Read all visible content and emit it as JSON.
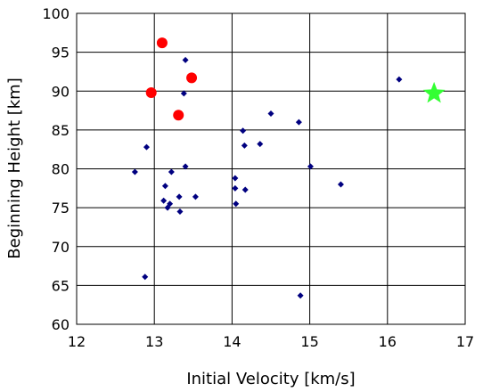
{
  "chart_data": {
    "type": "scatter",
    "xlabel": "Initial Velocity [km/s]",
    "ylabel": "Beginning Height [km]",
    "xlim": [
      12,
      17
    ],
    "ylim": [
      60,
      100
    ],
    "x_ticks": [
      12,
      13,
      14,
      15,
      16,
      17
    ],
    "y_ticks": [
      60,
      65,
      70,
      75,
      80,
      85,
      90,
      95,
      100
    ],
    "grid": true,
    "legend": "none",
    "series": [
      {
        "marker": "diamond",
        "color": "#000080",
        "points": [
          [
            12.75,
            79.6
          ],
          [
            12.88,
            66.1
          ],
          [
            12.9,
            82.8
          ],
          [
            13.12,
            75.9
          ],
          [
            13.14,
            77.8
          ],
          [
            13.17,
            75.0
          ],
          [
            13.2,
            75.5
          ],
          [
            13.22,
            79.6
          ],
          [
            13.32,
            76.4
          ],
          [
            13.33,
            74.5
          ],
          [
            13.38,
            89.7
          ],
          [
            13.4,
            80.3
          ],
          [
            13.4,
            94.0
          ],
          [
            13.53,
            76.4
          ],
          [
            14.04,
            78.8
          ],
          [
            14.04,
            77.5
          ],
          [
            14.05,
            75.5
          ],
          [
            14.14,
            84.9
          ],
          [
            14.16,
            83.0
          ],
          [
            14.17,
            77.3
          ],
          [
            14.36,
            83.2
          ],
          [
            14.5,
            87.1
          ],
          [
            14.86,
            86.0
          ],
          [
            14.88,
            63.7
          ],
          [
            15.01,
            80.3
          ],
          [
            15.4,
            78.0
          ],
          [
            16.15,
            91.5
          ]
        ]
      },
      {
        "marker": "circle",
        "color": "#ff0000",
        "points": [
          [
            12.96,
            89.8
          ],
          [
            13.1,
            96.2
          ],
          [
            13.31,
            86.9
          ],
          [
            13.48,
            91.7
          ]
        ]
      },
      {
        "marker": "star",
        "color": "#33ff33",
        "points": [
          [
            16.6,
            89.7
          ]
        ]
      }
    ]
  }
}
